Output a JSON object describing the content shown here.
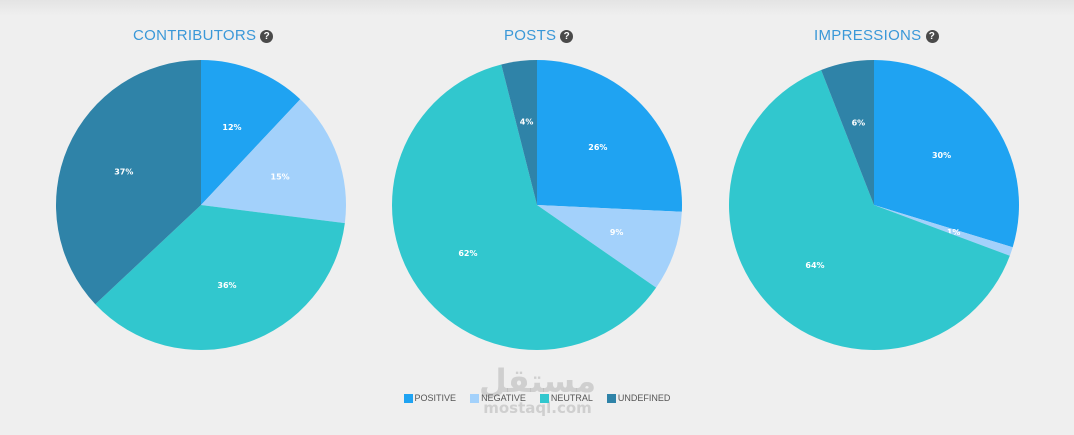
{
  "colors": {
    "positive": "#1fa3f2",
    "negative": "#a3d1fb",
    "neutral": "#31c7ce",
    "undefined": "#2f83a8",
    "title": "#3a98d8"
  },
  "help_icon": {
    "icon": "question-mark-icon",
    "glyph": "?"
  },
  "legend": [
    {
      "key": "positive",
      "label": "POSITIVE"
    },
    {
      "key": "negative",
      "label": "NEGATIVE"
    },
    {
      "key": "neutral",
      "label": "NEUTRAL"
    },
    {
      "key": "undefined",
      "label": "UNDEFINED"
    }
  ],
  "watermark": {
    "arabic": "مستقل",
    "latin": "mostaql.com"
  },
  "chart_data": [
    {
      "type": "pie",
      "title": "CONTRIBUTORS",
      "slices": [
        {
          "key": "positive",
          "value": 12,
          "label": "12%"
        },
        {
          "key": "negative",
          "value": 15,
          "label": "15%"
        },
        {
          "key": "neutral",
          "value": 36,
          "label": "36%"
        },
        {
          "key": "undefined",
          "value": 37,
          "label": "37%"
        }
      ]
    },
    {
      "type": "pie",
      "title": "POSTS",
      "slices": [
        {
          "key": "positive",
          "value": 26,
          "label": "26%"
        },
        {
          "key": "negative",
          "value": 9,
          "label": "9%"
        },
        {
          "key": "neutral",
          "value": 62,
          "label": "62%"
        },
        {
          "key": "undefined",
          "value": 4,
          "label": "4%"
        }
      ]
    },
    {
      "type": "pie",
      "title": "IMPRESSIONS",
      "slices": [
        {
          "key": "positive",
          "value": 30,
          "label": "30%"
        },
        {
          "key": "negative",
          "value": 1,
          "label": "1%"
        },
        {
          "key": "neutral",
          "value": 64,
          "label": "64%"
        },
        {
          "key": "undefined",
          "value": 6,
          "label": "6%"
        }
      ]
    }
  ]
}
